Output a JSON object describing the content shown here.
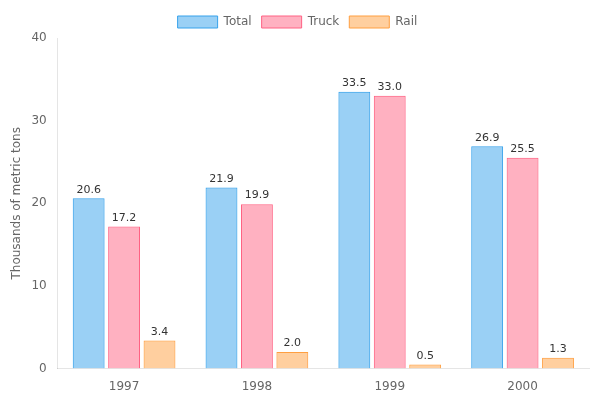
{
  "chart_data": {
    "type": "bar",
    "ylabel": "Thousands of metric tons",
    "categories": [
      "1997",
      "1998",
      "1999",
      "2000"
    ],
    "series": [
      {
        "name": "Total",
        "values": [
          20.6,
          21.9,
          33.5,
          26.9
        ]
      },
      {
        "name": "Truck",
        "values": [
          17.2,
          19.9,
          33.0,
          25.5
        ],
        "value_labels": [
          "17.2",
          "19.9",
          "33.0",
          "25.5"
        ]
      },
      {
        "name": "Rail",
        "values": [
          3.4,
          2.0,
          0.5,
          1.3
        ],
        "value_labels": [
          "3.4",
          "2.0",
          "0.5",
          "1.3"
        ]
      }
    ],
    "ylim": [
      0,
      40
    ],
    "yticks": [
      0,
      10,
      20,
      30,
      40
    ],
    "grid": false,
    "legend": "top",
    "data_labels": true
  }
}
